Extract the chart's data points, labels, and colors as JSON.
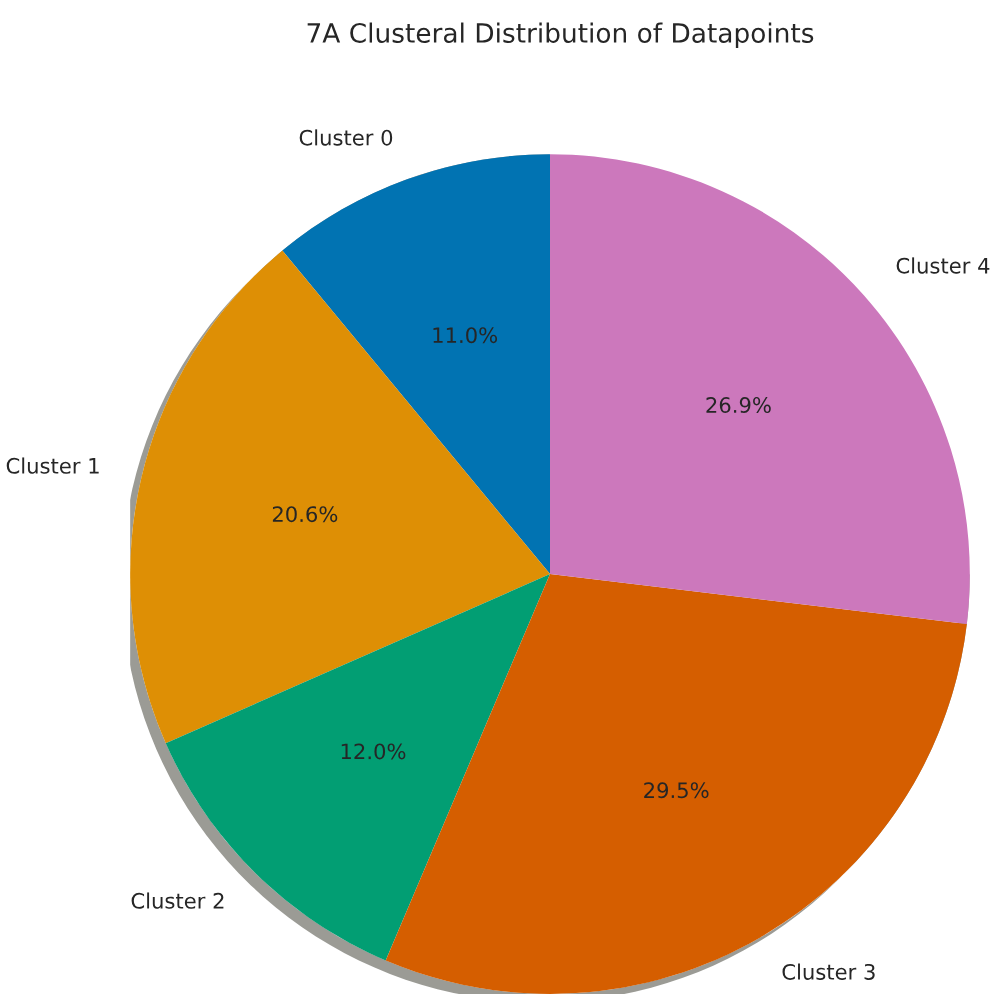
{
  "chart_data": {
    "type": "pie",
    "title": "7A Clusteral Distribution of Datapoints",
    "categories": [
      "Cluster 0",
      "Cluster 1",
      "Cluster 2",
      "Cluster 3",
      "Cluster 4"
    ],
    "values": [
      11.0,
      20.6,
      12.0,
      29.5,
      26.9
    ],
    "value_labels": [
      "11.0%",
      "20.6%",
      "12.0%",
      "29.5%",
      "26.9%"
    ],
    "colors": [
      "#0173b2",
      "#de8f05",
      "#029e73",
      "#d55e00",
      "#cc78bc"
    ]
  }
}
